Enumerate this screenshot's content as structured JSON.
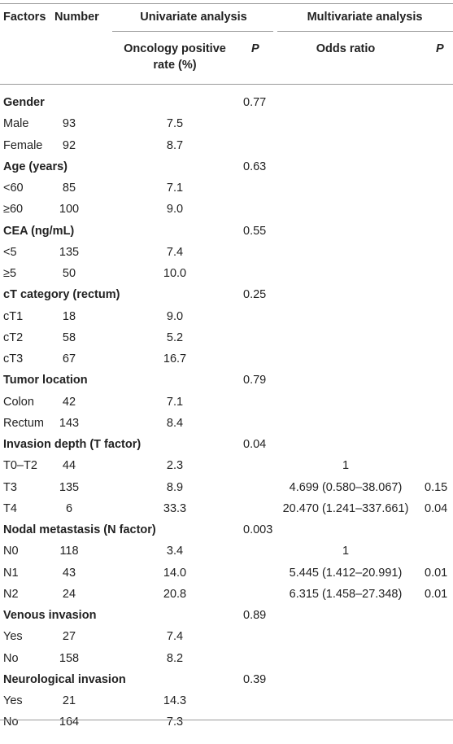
{
  "header": {
    "factors": "Factors",
    "number": "Number",
    "univariate": "Univariate analysis",
    "multivariate": "Multivariate analysis",
    "positive_rate_line1": "Oncology positive",
    "positive_rate_line2": "rate (%)",
    "p_uni": "P",
    "odds_ratio": "Odds ratio",
    "p_multi": "P"
  },
  "rows": [
    {
      "group": true,
      "factor": "Gender",
      "p": "0.77"
    },
    {
      "factor": "Male",
      "number": "93",
      "rate": "7.5"
    },
    {
      "factor": "Female",
      "number": "92",
      "rate": "8.7"
    },
    {
      "group": true,
      "factor": "Age (years)",
      "p": "0.63"
    },
    {
      "factor": "<60",
      "number": "85",
      "rate": "7.1"
    },
    {
      "factor": "≥60",
      "number": "100",
      "rate": "9.0"
    },
    {
      "group": true,
      "factor": "CEA (ng/mL)",
      "p": "0.55"
    },
    {
      "factor": "<5",
      "number": "135",
      "rate": "7.4"
    },
    {
      "factor": "≥5",
      "number": "50",
      "rate": "10.0"
    },
    {
      "group": true,
      "factor": "cT category (rectum)",
      "p": "0.25"
    },
    {
      "factor": "cT1",
      "number": "18",
      "rate": "9.0"
    },
    {
      "factor": "cT2",
      "number": "58",
      "rate": "5.2"
    },
    {
      "factor": "cT3",
      "number": "67",
      "rate": "16.7"
    },
    {
      "group": true,
      "factor": "Tumor location",
      "p": "0.79"
    },
    {
      "factor": "Colon",
      "number": "42",
      "rate": "7.1"
    },
    {
      "factor": "Rectum",
      "number": "143",
      "rate": "8.4"
    },
    {
      "group": true,
      "factor": "Invasion depth (T factor)",
      "p": "0.04"
    },
    {
      "factor": "T0–T2",
      "number": "44",
      "rate": "2.3",
      "odds": "1"
    },
    {
      "factor": "T3",
      "number": "135",
      "rate": "8.9",
      "odds": "4.699 (0.580–38.067)",
      "p_multi": "0.15"
    },
    {
      "factor": "T4",
      "number": "6",
      "rate": "33.3",
      "odds": "20.470 (1.241–337.661)",
      "p_multi": "0.04"
    },
    {
      "group": true,
      "factor": "Nodal metastasis (N factor)",
      "p": "0.003"
    },
    {
      "factor": "N0",
      "number": "118",
      "rate": "3.4",
      "odds": "1"
    },
    {
      "factor": "N1",
      "number": "43",
      "rate": "14.0",
      "odds": "5.445 (1.412–20.991)",
      "p_multi": "0.01"
    },
    {
      "factor": "N2",
      "number": "24",
      "rate": "20.8",
      "odds": "6.315 (1.458–27.348)",
      "p_multi": "0.01"
    },
    {
      "group": true,
      "factor": "Venous invasion",
      "p": "0.89"
    },
    {
      "factor": "Yes",
      "number": "27",
      "rate": "7.4"
    },
    {
      "factor": "No",
      "number": "158",
      "rate": "8.2"
    },
    {
      "group": true,
      "factor": "Neurological invasion",
      "p": "0.39"
    },
    {
      "factor": "Yes",
      "number": "21",
      "rate": "14.3"
    },
    {
      "factor": "No",
      "number": "164",
      "rate": "7.3"
    }
  ]
}
